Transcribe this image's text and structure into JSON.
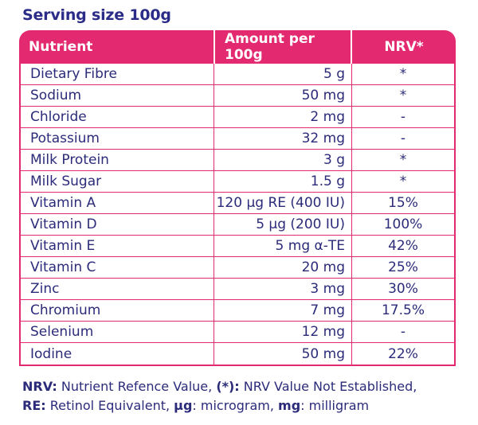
{
  "title": "Serving size 100g",
  "header": {
    "nutrient": "Nutrient",
    "amount": "Amount per 100g",
    "nrv": "NRV*"
  },
  "rows": [
    {
      "nutrient": "Dietary Fibre",
      "amount": "5 g",
      "nrv": "*"
    },
    {
      "nutrient": "Sodium",
      "amount": "50 mg",
      "nrv": "*"
    },
    {
      "nutrient": "Chloride",
      "amount": "2 mg",
      "nrv": "-"
    },
    {
      "nutrient": "Potassium",
      "amount": "32 mg",
      "nrv": "-"
    },
    {
      "nutrient": "Milk Protein",
      "amount": "3 g",
      "nrv": "*"
    },
    {
      "nutrient": "Milk Sugar",
      "amount": "1.5 g",
      "nrv": "*"
    },
    {
      "nutrient": "Vitamin A",
      "amount": "120 µg RE (400 IU)",
      "nrv": "15%"
    },
    {
      "nutrient": "Vitamin D",
      "amount": "5 µg (200 IU)",
      "nrv": "100%"
    },
    {
      "nutrient": "Vitamin E",
      "amount": "5 mg α-TE",
      "nrv": "42%"
    },
    {
      "nutrient": "Vitamin C",
      "amount": "20 mg",
      "nrv": "25%"
    },
    {
      "nutrient": "Zinc",
      "amount": "3 mg",
      "nrv": "30%"
    },
    {
      "nutrient": "Chromium",
      "amount": "7 mg",
      "nrv": "17.5%"
    },
    {
      "nutrient": "Selenium",
      "amount": "12 mg",
      "nrv": "-"
    },
    {
      "nutrient": "Iodine",
      "amount": "50 mg",
      "nrv": "22%"
    }
  ],
  "footnote": {
    "line1": [
      {
        "text": "NRV:",
        "bold": true
      },
      {
        "text": " Nutrient Refence Value, ",
        "bold": false
      },
      {
        "text": "(*):",
        "bold": true
      },
      {
        "text": " NRV Value Not Established,",
        "bold": false
      }
    ],
    "line2": [
      {
        "text": "RE:",
        "bold": true
      },
      {
        "text": " Retinol Equivalent, ",
        "bold": false
      },
      {
        "text": "µg",
        "bold": true
      },
      {
        "text": ": microgram, ",
        "bold": false
      },
      {
        "text": "mg",
        "bold": true
      },
      {
        "text": ": milligram",
        "bold": false
      }
    ]
  },
  "colors": {
    "accent": "#e3296f",
    "text": "#2b2b7a"
  }
}
